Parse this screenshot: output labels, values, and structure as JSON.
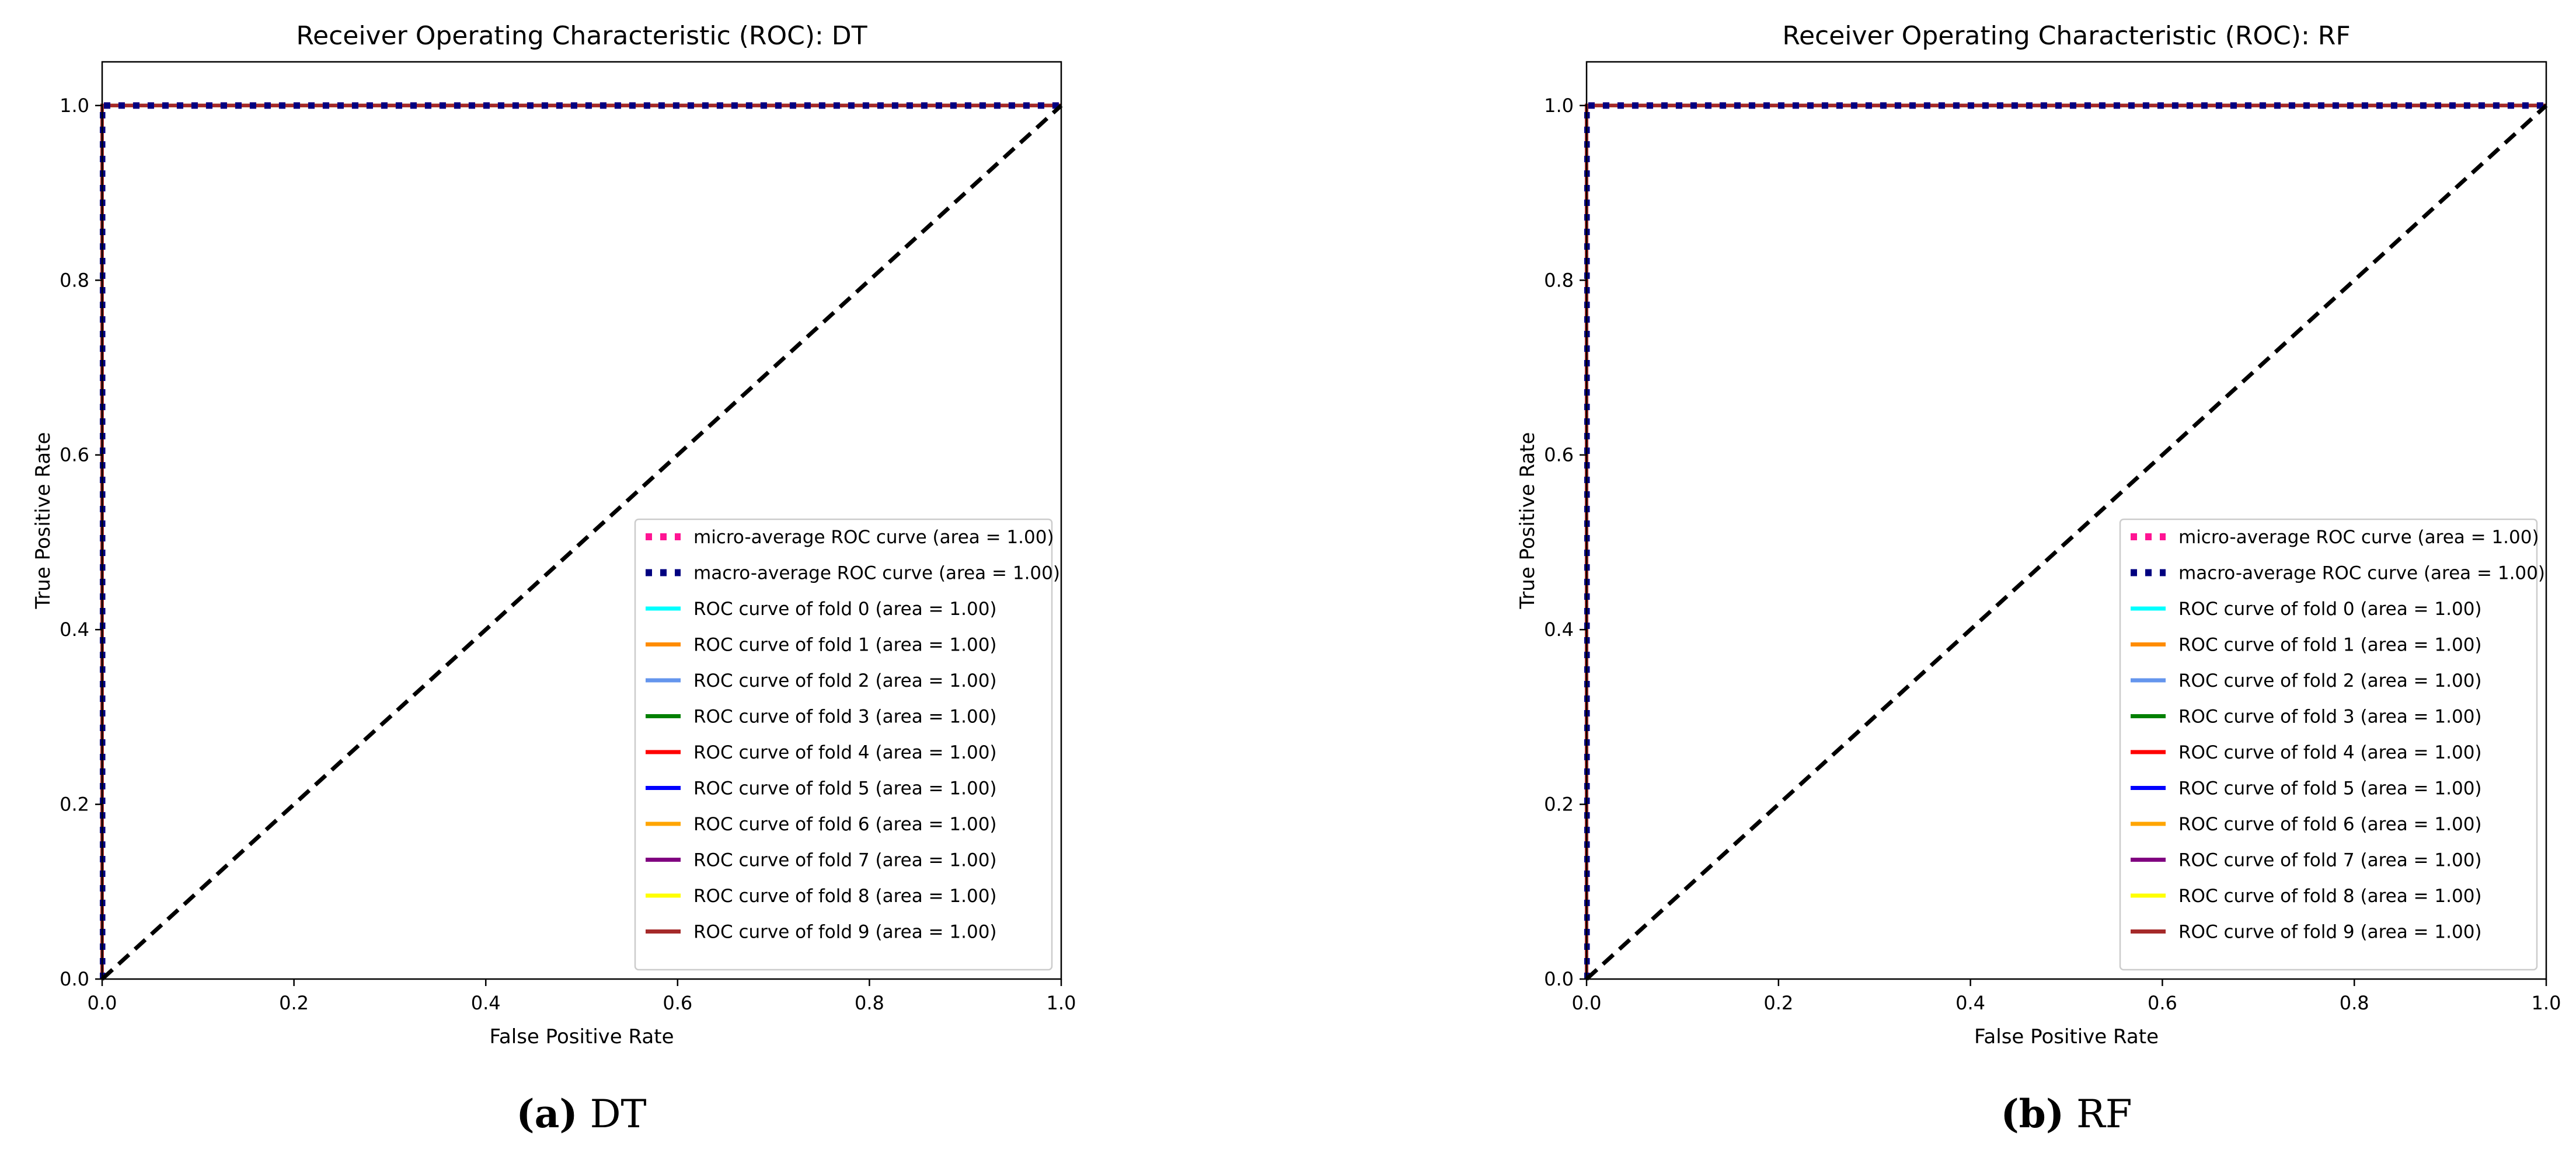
{
  "chart_data": [
    {
      "type": "line",
      "title": "Receiver Operating Characteristic (ROC): DT",
      "xlabel": "False Positive Rate",
      "ylabel": "True Positive Rate",
      "xlim": [
        0.0,
        1.0
      ],
      "ylim": [
        0.0,
        1.05
      ],
      "xticks": [
        "0.0",
        "0.2",
        "0.4",
        "0.6",
        "0.8",
        "1.0"
      ],
      "yticks": [
        "0.0",
        "0.2",
        "0.4",
        "0.6",
        "0.8",
        "1.0"
      ],
      "grid": false,
      "legend_position": "lower-right",
      "caption_letter": "(a)",
      "caption_text": " DT",
      "chance_line": {
        "x": [
          0.0,
          1.0
        ],
        "y": [
          0.0,
          1.0
        ],
        "color": "#000000",
        "style": "dashed"
      },
      "series": [
        {
          "label": "micro-average ROC curve (area = 1.00)",
          "color": "#ff1493",
          "style": "dotted",
          "x": [
            0.0,
            0.0,
            1.0
          ],
          "y": [
            0.0,
            1.0,
            1.0
          ]
        },
        {
          "label": "macro-average ROC curve (area = 1.00)",
          "color": "#000080",
          "style": "dotted",
          "x": [
            0.0,
            0.0,
            1.0
          ],
          "y": [
            0.0,
            1.0,
            1.0
          ]
        },
        {
          "label": "ROC curve of fold 0 (area = 1.00)",
          "color": "#00ffff",
          "style": "solid",
          "x": [
            0.0,
            0.0,
            1.0
          ],
          "y": [
            0.0,
            1.0,
            1.0
          ]
        },
        {
          "label": "ROC curve of fold 1 (area = 1.00)",
          "color": "#ff8c00",
          "style": "solid",
          "x": [
            0.0,
            0.0,
            1.0
          ],
          "y": [
            0.0,
            1.0,
            1.0
          ]
        },
        {
          "label": "ROC curve of fold 2 (area = 1.00)",
          "color": "#6495ed",
          "style": "solid",
          "x": [
            0.0,
            0.0,
            1.0
          ],
          "y": [
            0.0,
            1.0,
            1.0
          ]
        },
        {
          "label": "ROC curve of fold 3 (area = 1.00)",
          "color": "#008000",
          "style": "solid",
          "x": [
            0.0,
            0.0,
            1.0
          ],
          "y": [
            0.0,
            1.0,
            1.0
          ]
        },
        {
          "label": "ROC curve of fold 4 (area = 1.00)",
          "color": "#ff0000",
          "style": "solid",
          "x": [
            0.0,
            0.0,
            1.0
          ],
          "y": [
            0.0,
            1.0,
            1.0
          ]
        },
        {
          "label": "ROC curve of fold 5 (area = 1.00)",
          "color": "#0000ff",
          "style": "solid",
          "x": [
            0.0,
            0.0,
            1.0
          ],
          "y": [
            0.0,
            1.0,
            1.0
          ]
        },
        {
          "label": "ROC curve of fold 6 (area = 1.00)",
          "color": "#ffa500",
          "style": "solid",
          "x": [
            0.0,
            0.0,
            1.0
          ],
          "y": [
            0.0,
            1.0,
            1.0
          ]
        },
        {
          "label": "ROC curve of fold 7 (area = 1.00)",
          "color": "#800080",
          "style": "solid",
          "x": [
            0.0,
            0.0,
            1.0
          ],
          "y": [
            0.0,
            1.0,
            1.0
          ]
        },
        {
          "label": "ROC curve of fold 8 (area = 1.00)",
          "color": "#ffff00",
          "style": "solid",
          "x": [
            0.0,
            0.0,
            1.0
          ],
          "y": [
            0.0,
            1.0,
            1.0
          ]
        },
        {
          "label": "ROC curve of fold 9 (area = 1.00)",
          "color": "#a52a2a",
          "style": "solid",
          "x": [
            0.0,
            0.0,
            1.0
          ],
          "y": [
            0.0,
            1.0,
            1.0
          ]
        }
      ]
    },
    {
      "type": "line",
      "title": "Receiver Operating Characteristic (ROC): RF",
      "xlabel": "False Positive Rate",
      "ylabel": "True Positive Rate",
      "xlim": [
        0.0,
        1.0
      ],
      "ylim": [
        0.0,
        1.05
      ],
      "xticks": [
        "0.0",
        "0.2",
        "0.4",
        "0.6",
        "0.8",
        "1.0"
      ],
      "yticks": [
        "0.0",
        "0.2",
        "0.4",
        "0.6",
        "0.8",
        "1.0"
      ],
      "grid": false,
      "legend_position": "lower-right",
      "caption_letter": "(b)",
      "caption_text": " RF",
      "chance_line": {
        "x": [
          0.0,
          1.0
        ],
        "y": [
          0.0,
          1.0
        ],
        "color": "#000000",
        "style": "dashed"
      },
      "series": [
        {
          "label": "micro-average ROC curve (area = 1.00)",
          "color": "#ff1493",
          "style": "dotted",
          "x": [
            0.0,
            0.0,
            1.0
          ],
          "y": [
            0.0,
            1.0,
            1.0
          ]
        },
        {
          "label": "macro-average ROC curve (area = 1.00)",
          "color": "#000080",
          "style": "dotted",
          "x": [
            0.0,
            0.0,
            1.0
          ],
          "y": [
            0.0,
            1.0,
            1.0
          ]
        },
        {
          "label": "ROC curve of fold 0 (area = 1.00)",
          "color": "#00ffff",
          "style": "solid",
          "x": [
            0.0,
            0.0,
            1.0
          ],
          "y": [
            0.0,
            1.0,
            1.0
          ]
        },
        {
          "label": "ROC curve of fold 1 (area = 1.00)",
          "color": "#ff8c00",
          "style": "solid",
          "x": [
            0.0,
            0.0,
            1.0
          ],
          "y": [
            0.0,
            1.0,
            1.0
          ]
        },
        {
          "label": "ROC curve of fold 2 (area = 1.00)",
          "color": "#6495ed",
          "style": "solid",
          "x": [
            0.0,
            0.0,
            1.0
          ],
          "y": [
            0.0,
            1.0,
            1.0
          ]
        },
        {
          "label": "ROC curve of fold 3 (area = 1.00)",
          "color": "#008000",
          "style": "solid",
          "x": [
            0.0,
            0.0,
            1.0
          ],
          "y": [
            0.0,
            1.0,
            1.0
          ]
        },
        {
          "label": "ROC curve of fold 4 (area = 1.00)",
          "color": "#ff0000",
          "style": "solid",
          "x": [
            0.0,
            0.0,
            1.0
          ],
          "y": [
            0.0,
            1.0,
            1.0
          ]
        },
        {
          "label": "ROC curve of fold 5 (area = 1.00)",
          "color": "#0000ff",
          "style": "solid",
          "x": [
            0.0,
            0.0,
            1.0
          ],
          "y": [
            0.0,
            1.0,
            1.0
          ]
        },
        {
          "label": "ROC curve of fold 6 (area = 1.00)",
          "color": "#ffa500",
          "style": "solid",
          "x": [
            0.0,
            0.0,
            1.0
          ],
          "y": [
            0.0,
            1.0,
            1.0
          ]
        },
        {
          "label": "ROC curve of fold 7 (area = 1.00)",
          "color": "#800080",
          "style": "solid",
          "x": [
            0.0,
            0.0,
            1.0
          ],
          "y": [
            0.0,
            1.0,
            1.0
          ]
        },
        {
          "label": "ROC curve of fold 8 (area = 1.00)",
          "color": "#ffff00",
          "style": "solid",
          "x": [
            0.0,
            0.0,
            1.0
          ],
          "y": [
            0.0,
            1.0,
            1.0
          ]
        },
        {
          "label": "ROC curve of fold 9 (area = 1.00)",
          "color": "#a52a2a",
          "style": "solid",
          "x": [
            0.0,
            0.0,
            1.0
          ],
          "y": [
            0.0,
            1.0,
            1.0
          ]
        }
      ]
    }
  ]
}
